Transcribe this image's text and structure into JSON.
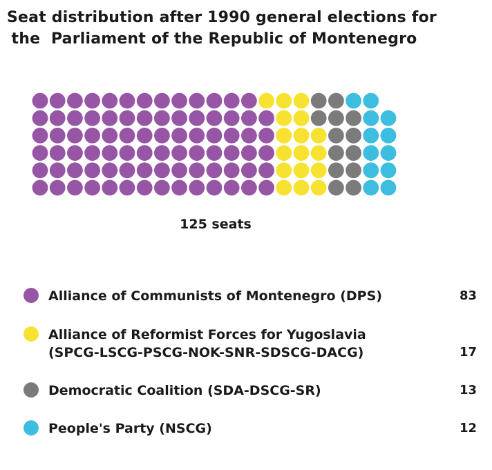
{
  "chart_data": {
    "type": "waffle",
    "title": "Seat distribution after 1990 general elections for the  Parliament of the Republic of Montenegro",
    "title_lines": [
      "Seat distribution after 1990 general elections for",
      "the  Parliament of the Republic of Montenegro"
    ],
    "total_label": "125 seats",
    "total": 125,
    "series": [
      {
        "name": "Alliance of Communists of Montenegro (DPS)",
        "name_lines": [
          "Alliance of Communists of Montenegro (DPS)"
        ],
        "value": 83,
        "color": "#9655a5"
      },
      {
        "name": "Alliance of Reformist Forces for Yugoslavia (SPCG-LSCG-PSCG-NOK-SNR-SDSCG-DACG)",
        "name_lines": [
          "Alliance of Reformist Forces for Yugoslavia",
          "(SPCG-LSCG-PSCG-NOK-SNR-SDSCG-DACG)"
        ],
        "value": 17,
        "color": "#f8e231"
      },
      {
        "name": "Democratic Coalition (SDA-DSCG-SR)",
        "name_lines": [
          "Democratic Coalition (SDA-DSCG-SR)"
        ],
        "value": 13,
        "color": "#7b7b7b"
      },
      {
        "name": "People's Party (NSCG)",
        "name_lines": [
          "People's Party (NSCG)"
        ],
        "value": 12,
        "color": "#3dbde0"
      }
    ]
  }
}
